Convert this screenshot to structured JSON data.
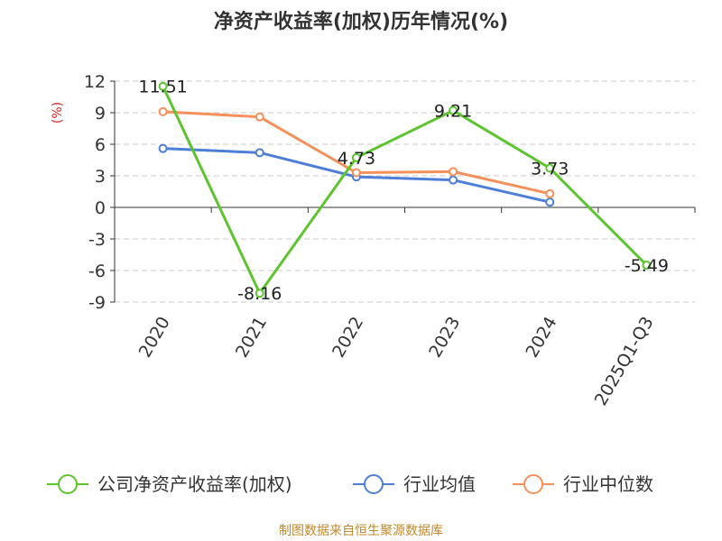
{
  "chart_data": {
    "type": "line",
    "title": "净资产收益率(加权)历年情况(%)",
    "ylabel": "(%)",
    "xlabel": "",
    "categories": [
      "2020",
      "2021",
      "2022",
      "2023",
      "2024",
      "2025Q1-Q3"
    ],
    "yticks": [
      12,
      9,
      6,
      3,
      0,
      -3,
      -6,
      -9
    ],
    "ylim": [
      -9,
      12
    ],
    "grid": true,
    "legend_position": "bottom",
    "series": [
      {
        "name": "公司净资产收益率(加权)",
        "color": "#5cc52e",
        "values": [
          11.51,
          -8.16,
          4.73,
          9.21,
          3.73,
          -5.49
        ],
        "labels": [
          "11.51",
          "-8.16",
          "4.73",
          "9.21",
          "3.73",
          "-5.49"
        ]
      },
      {
        "name": "行业均值",
        "color": "#4e7fd8",
        "values": [
          5.6,
          5.2,
          2.9,
          2.6,
          0.5,
          null
        ]
      },
      {
        "name": "行业中位数",
        "color": "#f5905a",
        "values": [
          9.1,
          8.6,
          3.3,
          3.4,
          1.3,
          null
        ]
      }
    ]
  },
  "footer": "制图数据来自恒生聚源数据库"
}
